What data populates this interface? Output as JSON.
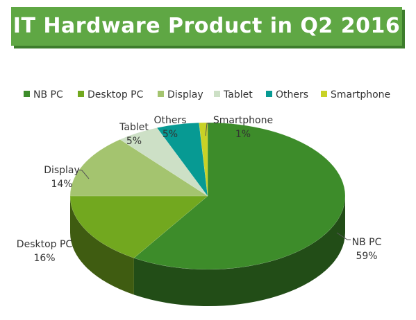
{
  "title": "IT Hardware Product in Q2 2016",
  "chart_data": {
    "type": "pie",
    "style": "3d",
    "legend_position": "top",
    "slices": [
      {
        "name": "NB PC",
        "value": 59,
        "label": "59%",
        "color": "#3d8c2a"
      },
      {
        "name": "Desktop PC",
        "value": 16,
        "label": "16%",
        "color": "#72a81f"
      },
      {
        "name": "Display",
        "value": 14,
        "label": "14%",
        "color": "#a4c46f"
      },
      {
        "name": "Tablet",
        "value": 5,
        "label": "5%",
        "color": "#cde0c6"
      },
      {
        "name": "Others",
        "value": 5,
        "label": "5%",
        "color": "#079a93"
      },
      {
        "name": "Smartphone",
        "value": 1,
        "label": "1%",
        "color": "#c8d226"
      }
    ]
  }
}
